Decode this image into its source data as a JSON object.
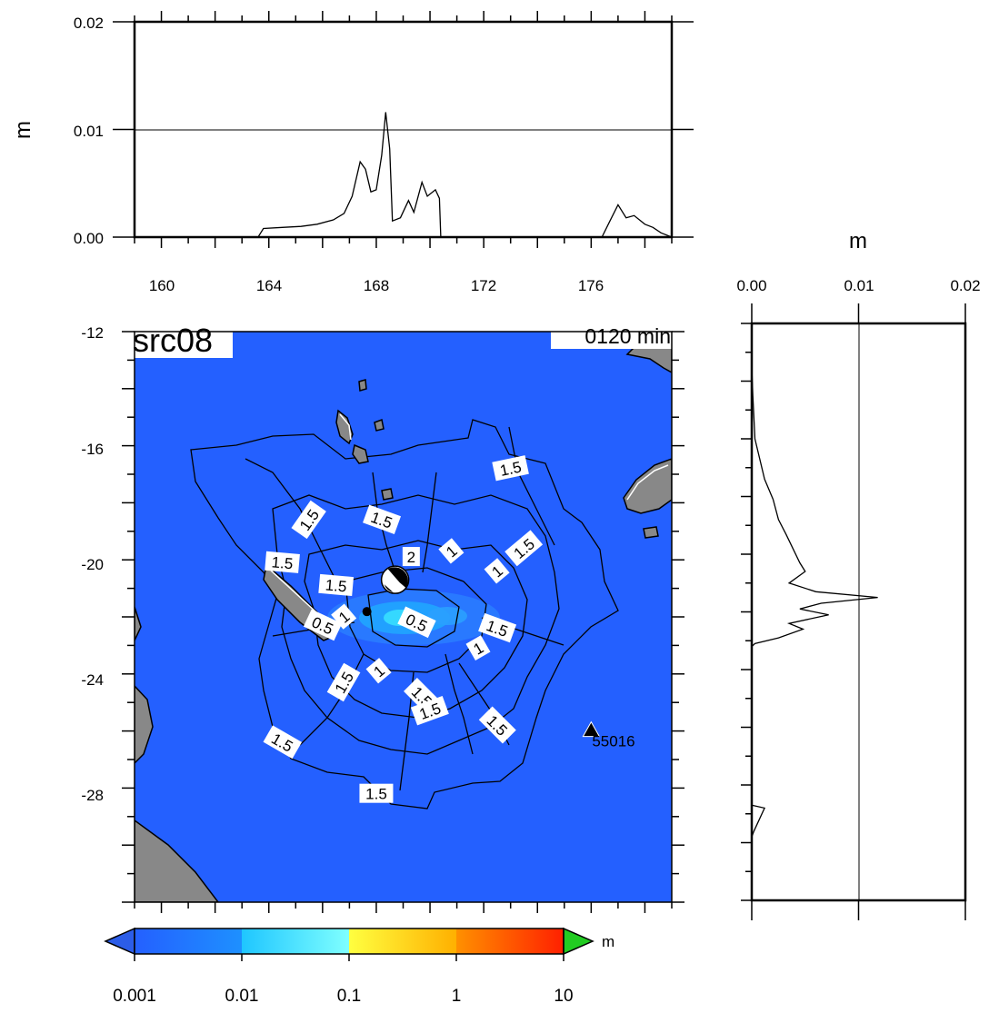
{
  "top_panel": {
    "ylabel": "m",
    "yticks": [
      "0.00",
      "0.01",
      "0.02"
    ],
    "xticks": [
      "160",
      "164",
      "168",
      "172",
      "176"
    ],
    "x_range": [
      159,
      179
    ],
    "y_range": [
      0,
      0.02
    ],
    "profile": [
      [
        159,
        0
      ],
      [
        163.6,
        0
      ],
      [
        163.8,
        0.0008
      ],
      [
        164.5,
        0.0009
      ],
      [
        165.2,
        0.001
      ],
      [
        165.8,
        0.0012
      ],
      [
        166.4,
        0.0016
      ],
      [
        166.8,
        0.0022
      ],
      [
        167.1,
        0.0038
      ],
      [
        167.4,
        0.007
      ],
      [
        167.6,
        0.0063
      ],
      [
        167.8,
        0.0042
      ],
      [
        168.0,
        0.0044
      ],
      [
        168.2,
        0.0076
      ],
      [
        168.35,
        0.0116
      ],
      [
        168.5,
        0.0082
      ],
      [
        168.6,
        0.0015
      ],
      [
        168.9,
        0.0018
      ],
      [
        169.2,
        0.0034
      ],
      [
        169.4,
        0.0023
      ],
      [
        169.7,
        0.0051
      ],
      [
        169.9,
        0.0038
      ],
      [
        170.2,
        0.0044
      ],
      [
        170.35,
        0.0036
      ],
      [
        170.4,
        0
      ],
      [
        176.4,
        0
      ],
      [
        176.7,
        0.0015
      ],
      [
        177.0,
        0.003
      ],
      [
        177.3,
        0.0018
      ],
      [
        177.6,
        0.002
      ],
      [
        178.0,
        0.0012
      ],
      [
        178.3,
        0.0009
      ],
      [
        178.6,
        0.0004
      ],
      [
        179,
        0
      ]
    ]
  },
  "right_panel": {
    "xlabel": "m",
    "xticks": [
      "0.00",
      "0.01",
      "0.02"
    ],
    "y_range": [
      -32,
      -12
    ],
    "x_range": [
      0,
      0.02
    ],
    "profile": [
      [
        0,
        -13.5
      ],
      [
        0.0001,
        -14.5
      ],
      [
        0.0003,
        -16.0
      ],
      [
        0.0012,
        -17.4
      ],
      [
        0.002,
        -18.1
      ],
      [
        0.0025,
        -18.8
      ],
      [
        0.0032,
        -19.3
      ],
      [
        0.0045,
        -20.3
      ],
      [
        0.005,
        -20.6
      ],
      [
        0.0035,
        -21.0
      ],
      [
        0.006,
        -21.3
      ],
      [
        0.0118,
        -21.5
      ],
      [
        0.0065,
        -21.7
      ],
      [
        0.0045,
        -21.9
      ],
      [
        0.0072,
        -22.1
      ],
      [
        0.0035,
        -22.4
      ],
      [
        0.0048,
        -22.6
      ],
      [
        0.0025,
        -22.9
      ],
      [
        0.0003,
        -23.1
      ],
      [
        0,
        -23.2
      ],
      [
        0,
        -28.7
      ],
      [
        0.0012,
        -28.8
      ],
      [
        0.0002,
        -29.6
      ],
      [
        0,
        -29.8
      ]
    ]
  },
  "map": {
    "title": "src08",
    "time_label": "0120 min",
    "yticks": [
      "-12",
      "-16",
      "-20",
      "-24",
      "-28"
    ],
    "lon_range": [
      159,
      179
    ],
    "lat_range": [
      -32,
      -12
    ],
    "ocean_color": "#2460ff",
    "land_color": "#888888",
    "station": {
      "label": "55016",
      "lon": 176.0,
      "lat": -26.0
    },
    "source": {
      "lon": 168.7,
      "lat": -20.7
    },
    "contour_labels": [
      {
        "text": "1.5",
        "lon": 173.0,
        "lat": -16.8,
        "rot": -12
      },
      {
        "text": "1.5",
        "lon": 165.5,
        "lat": -18.6,
        "rot": -55
      },
      {
        "text": "1.5",
        "lon": 168.2,
        "lat": -18.6,
        "rot": 20
      },
      {
        "text": "1.5",
        "lon": 173.5,
        "lat": -19.6,
        "rot": -40
      },
      {
        "text": "1.5",
        "lon": 164.5,
        "lat": -20.1,
        "rot": 5
      },
      {
        "text": "1.5",
        "lon": 166.5,
        "lat": -20.9,
        "rot": 5
      },
      {
        "text": "1.5",
        "lon": 172.5,
        "lat": -22.4,
        "rot": 20
      },
      {
        "text": "1.5",
        "lon": 166.8,
        "lat": -24.3,
        "rot": -60
      },
      {
        "text": "1.5",
        "lon": 169.7,
        "lat": -24.8,
        "rot": 45
      },
      {
        "text": "1.5",
        "lon": 170.0,
        "lat": -25.3,
        "rot": -20
      },
      {
        "text": "1.5",
        "lon": 172.5,
        "lat": -25.8,
        "rot": 45
      },
      {
        "text": "1.5",
        "lon": 164.5,
        "lat": -26.4,
        "rot": 30
      },
      {
        "text": "1.5",
        "lon": 168.0,
        "lat": -28.2,
        "rot": 0
      },
      {
        "text": "1",
        "lon": 170.8,
        "lat": -19.7,
        "rot": -40
      },
      {
        "text": "1",
        "lon": 172.5,
        "lat": -20.4,
        "rot": -40
      },
      {
        "text": "1",
        "lon": 166.8,
        "lat": -22.0,
        "rot": -40
      },
      {
        "text": "1",
        "lon": 168.1,
        "lat": -23.9,
        "rot": -40
      },
      {
        "text": "1",
        "lon": 171.8,
        "lat": -23.1,
        "rot": -30
      },
      {
        "text": "0.5",
        "lon": 169.5,
        "lat": -22.2,
        "rot": 25
      },
      {
        "text": "0.5",
        "lon": 166.0,
        "lat": -22.3,
        "rot": 25
      },
      {
        "text": "2",
        "lon": 169.3,
        "lat": -19.9,
        "rot": 0
      }
    ]
  },
  "colorbar": {
    "unit": "m",
    "ticks": [
      "0.001",
      "0.01",
      "0.1",
      "1",
      "10"
    ],
    "under_color": "#2c5de8",
    "over_color": "#22cc22",
    "bins": [
      [
        "#2460ff",
        "#1e90ff"
      ],
      [
        "#1fc6ff",
        "#7fffff"
      ],
      [
        "#ffff40",
        "#ffb000"
      ],
      [
        "#ff9000",
        "#ff2000"
      ]
    ]
  }
}
